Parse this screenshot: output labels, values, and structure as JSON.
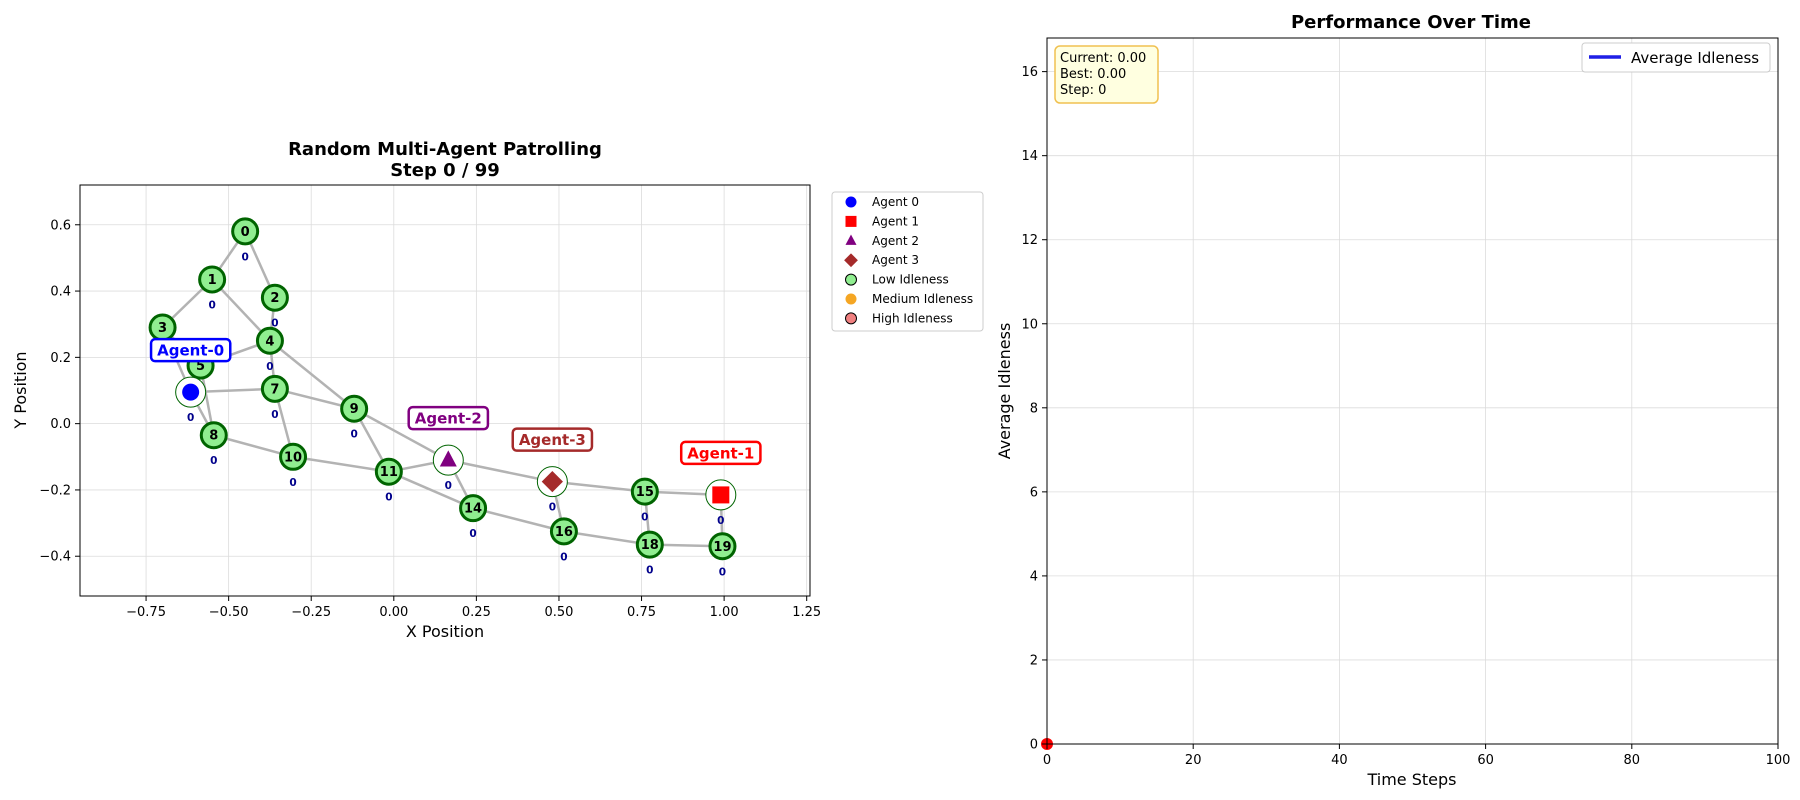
{
  "colors": {
    "edge": "#b3b3b3",
    "node_fill_low": "#90ee90",
    "node_stroke": "#006400",
    "idle_label": "#00008b",
    "grid": "#dcdcdc",
    "info_box_fill": "#ffffe0",
    "info_box_stroke": "#f0c050",
    "avg_line": "#1f1fe6",
    "current_marker": "#ff0000"
  },
  "chart_data": [
    {
      "type": "network",
      "title": "Random Multi-Agent Patrolling",
      "subtitle": "Step 0 / 99",
      "xlabel": "X Position",
      "ylabel": "Y Position",
      "xlim": [
        -0.95,
        1.26
      ],
      "ylim": [
        -0.52,
        0.72
      ],
      "xticks": [
        -0.75,
        -0.5,
        -0.25,
        0.0,
        0.25,
        0.5,
        0.75,
        1.0,
        1.25
      ],
      "xtick_labels": [
        "−0.75",
        "−0.50",
        "−0.25",
        "0.00",
        "0.25",
        "0.50",
        "0.75",
        "1.00",
        "1.25"
      ],
      "yticks": [
        -0.4,
        -0.2,
        0.0,
        0.2,
        0.4,
        0.6
      ],
      "ytick_labels": [
        "−0.4",
        "−0.2",
        "0.0",
        "0.2",
        "0.4",
        "0.6"
      ],
      "grid": true,
      "nodes": [
        {
          "id": "0",
          "x": -0.45,
          "y": 0.58,
          "idleness": "0"
        },
        {
          "id": "1",
          "x": -0.55,
          "y": 0.435,
          "idleness": "0"
        },
        {
          "id": "2",
          "x": -0.36,
          "y": 0.38,
          "idleness": "0"
        },
        {
          "id": "3",
          "x": -0.7,
          "y": 0.29,
          "idleness": "0"
        },
        {
          "id": "4",
          "x": -0.375,
          "y": 0.25,
          "idleness": "0"
        },
        {
          "id": "5",
          "x": -0.585,
          "y": 0.175,
          "idleness": "0"
        },
        {
          "id": "6",
          "x": -0.615,
          "y": 0.095,
          "idleness": "0"
        },
        {
          "id": "7",
          "x": -0.36,
          "y": 0.105,
          "idleness": "0"
        },
        {
          "id": "8",
          "x": -0.545,
          "y": -0.035,
          "idleness": "0"
        },
        {
          "id": "9",
          "x": -0.12,
          "y": 0.045,
          "idleness": "0"
        },
        {
          "id": "10",
          "x": -0.305,
          "y": -0.1,
          "idleness": "0"
        },
        {
          "id": "11",
          "x": -0.015,
          "y": -0.145,
          "idleness": "0"
        },
        {
          "id": "12",
          "x": 0.165,
          "y": -0.11,
          "idleness": "0"
        },
        {
          "id": "13",
          "x": 0.48,
          "y": -0.175,
          "idleness": "0"
        },
        {
          "id": "14",
          "x": 0.24,
          "y": -0.255,
          "idleness": "0"
        },
        {
          "id": "15",
          "x": 0.76,
          "y": -0.205,
          "idleness": "0"
        },
        {
          "id": "16",
          "x": 0.515,
          "y": -0.325,
          "idleness": "0"
        },
        {
          "id": "17",
          "x": 0.99,
          "y": -0.215,
          "idleness": "0"
        },
        {
          "id": "18",
          "x": 0.775,
          "y": -0.365,
          "idleness": "0"
        },
        {
          "id": "19",
          "x": 0.995,
          "y": -0.37,
          "idleness": "0"
        }
      ],
      "hidden_labels": [
        "6",
        "12",
        "13",
        "17"
      ],
      "edges": [
        [
          "0",
          "1"
        ],
        [
          "0",
          "2"
        ],
        [
          "1",
          "3"
        ],
        [
          "1",
          "4"
        ],
        [
          "2",
          "4"
        ],
        [
          "3",
          "5"
        ],
        [
          "4",
          "5"
        ],
        [
          "4",
          "7"
        ],
        [
          "4",
          "9"
        ],
        [
          "5",
          "8"
        ],
        [
          "6",
          "7"
        ],
        [
          "6",
          "8"
        ],
        [
          "3",
          "6"
        ],
        [
          "7",
          "10"
        ],
        [
          "7",
          "9"
        ],
        [
          "8",
          "10"
        ],
        [
          "9",
          "11"
        ],
        [
          "9",
          "12"
        ],
        [
          "10",
          "11"
        ],
        [
          "11",
          "12"
        ],
        [
          "11",
          "14"
        ],
        [
          "12",
          "14"
        ],
        [
          "12",
          "13"
        ],
        [
          "13",
          "16"
        ],
        [
          "13",
          "15"
        ],
        [
          "14",
          "16"
        ],
        [
          "15",
          "17"
        ],
        [
          "15",
          "18"
        ],
        [
          "16",
          "18"
        ],
        [
          "18",
          "19"
        ],
        [
          "17",
          "19"
        ]
      ],
      "agents": [
        {
          "label": "Agent-0",
          "node": "6",
          "marker": "circle",
          "color": "#0000ff"
        },
        {
          "label": "Agent-1",
          "node": "17",
          "marker": "square",
          "color": "#ff0000"
        },
        {
          "label": "Agent-2",
          "node": "12",
          "marker": "triangle",
          "color": "#800080"
        },
        {
          "label": "Agent-3",
          "node": "13",
          "marker": "diamond",
          "color": "#a52a2a"
        }
      ],
      "legend": {
        "placement": "outside-right",
        "entries": [
          {
            "label": "Agent 0",
            "marker": "circle",
            "color": "#0000ff"
          },
          {
            "label": "Agent 1",
            "marker": "square",
            "color": "#ff0000"
          },
          {
            "label": "Agent 2",
            "marker": "triangle",
            "color": "#800080"
          },
          {
            "label": "Agent 3",
            "marker": "diamond",
            "color": "#a52a2a"
          },
          {
            "label": "Low Idleness",
            "marker": "circle-outlined",
            "color": "#90ee90"
          },
          {
            "label": "Medium Idleness",
            "marker": "circle",
            "color": "#f5a623"
          },
          {
            "label": "High Idleness",
            "marker": "circle-outlined",
            "color": "#f08080"
          }
        ]
      }
    },
    {
      "type": "line",
      "title": "Performance Over Time",
      "xlabel": "Time Steps",
      "ylabel": "Average Idleness",
      "xlim": [
        0,
        100
      ],
      "ylim": [
        0,
        16.8
      ],
      "xticks": [
        0,
        20,
        40,
        60,
        80,
        100
      ],
      "xtick_labels": [
        "0",
        "20",
        "40",
        "60",
        "80",
        "100"
      ],
      "yticks": [
        0,
        2,
        4,
        6,
        8,
        10,
        12,
        14,
        16
      ],
      "ytick_labels": [
        "0",
        "2",
        "4",
        "6",
        "8",
        "10",
        "12",
        "14",
        "16"
      ],
      "grid": true,
      "series": [
        {
          "name": "Average Idleness",
          "x": [
            0
          ],
          "y": [
            0
          ]
        }
      ],
      "current_point": {
        "x": 0,
        "y": 0
      },
      "legend_placement": "top-right",
      "info_box": {
        "lines": [
          "Current: 0.00",
          "Best: 0.00",
          "Step: 0"
        ]
      }
    }
  ]
}
